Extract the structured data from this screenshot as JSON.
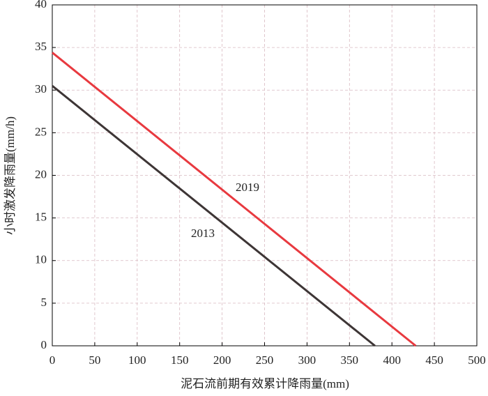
{
  "chart_data": {
    "type": "line",
    "x_label": "泥石流前期有效累计降雨量(mm)",
    "y_label": "小时激发降雨量(mm/h)",
    "series": [
      {
        "name": "2019",
        "color": "#e8393f",
        "x": [
          0,
          428
        ],
        "values": [
          34.4,
          0
        ]
      },
      {
        "name": "2013",
        "color": "#3d3535",
        "x": [
          0,
          380
        ],
        "values": [
          30.5,
          0
        ]
      }
    ],
    "xlim": [
      0,
      500
    ],
    "xticks": [
      0,
      50,
      100,
      150,
      200,
      250,
      300,
      350,
      400,
      450,
      500
    ],
    "ylim": [
      0,
      40
    ],
    "yticks": [
      0,
      5,
      10,
      15,
      20,
      25,
      30,
      35,
      40
    ],
    "grid": true
  }
}
